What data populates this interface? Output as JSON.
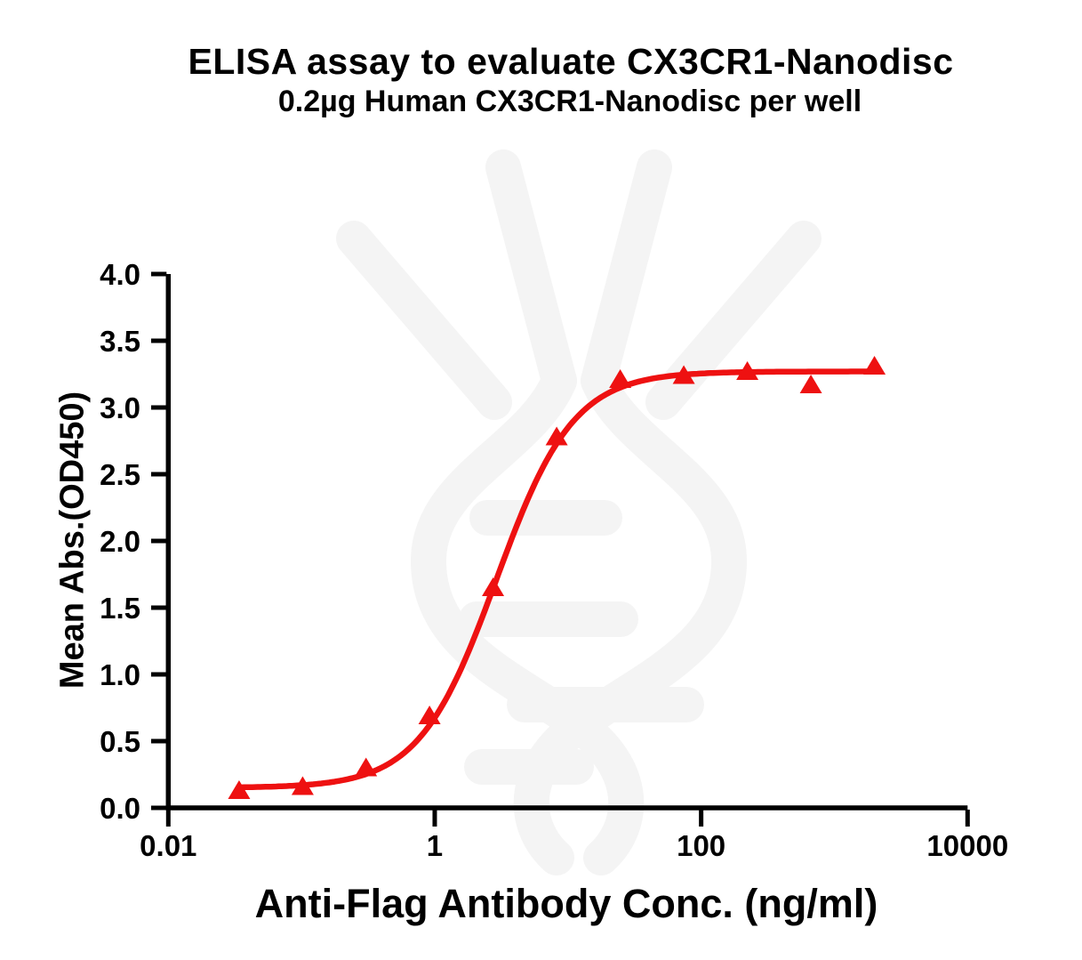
{
  "figure": {
    "title": "ELISA assay to evaluate CX3CR1-Nanodisc",
    "subtitle": "0.2µg Human CX3CR1-Nanodisc per well"
  },
  "chart_data": {
    "type": "scatter",
    "title": "ELISA assay to evaluate CX3CR1-Nanodisc",
    "subtitle": "0.2µg Human CX3CR1-Nanodisc per well",
    "xlabel": "Anti-Flag Antibody Conc. (ng/ml)",
    "ylabel": "Mean Abs.(OD450)",
    "x_scale": "log10",
    "xlim": [
      0.01,
      10000
    ],
    "ylim": [
      0.0,
      4.0
    ],
    "grid": false,
    "legend_position": "none",
    "x_ticks": [
      {
        "value": 0.01,
        "label": "0.01"
      },
      {
        "value": 1,
        "label": "1"
      },
      {
        "value": 100,
        "label": "100"
      },
      {
        "value": 10000,
        "label": "10000"
      }
    ],
    "y_ticks": [
      {
        "value": 0.0,
        "label": "0.0"
      },
      {
        "value": 0.5,
        "label": "0.5"
      },
      {
        "value": 1.0,
        "label": "1.0"
      },
      {
        "value": 1.5,
        "label": "1.5"
      },
      {
        "value": 2.0,
        "label": "2.0"
      },
      {
        "value": 2.5,
        "label": "2.5"
      },
      {
        "value": 3.0,
        "label": "3.0"
      },
      {
        "value": 3.5,
        "label": "3.5"
      },
      {
        "value": 4.0,
        "label": "4.0"
      }
    ],
    "series": [
      {
        "name": "Human CX3CR1-Nanodisc",
        "marker": "triangle-up",
        "color": "#EE1111",
        "points": [
          {
            "x": 0.034,
            "y": 0.13
          },
          {
            "x": 0.102,
            "y": 0.16
          },
          {
            "x": 0.305,
            "y": 0.3
          },
          {
            "x": 0.914,
            "y": 0.69
          },
          {
            "x": 2.74,
            "y": 1.65
          },
          {
            "x": 8.23,
            "y": 2.78
          },
          {
            "x": 24.69,
            "y": 3.21
          },
          {
            "x": 74.07,
            "y": 3.24
          },
          {
            "x": 222.2,
            "y": 3.27
          },
          {
            "x": 666.7,
            "y": 3.17
          },
          {
            "x": 2000,
            "y": 3.31
          }
        ]
      }
    ],
    "fit_curve": {
      "model": "4PL",
      "bottom": 0.15,
      "top": 3.27,
      "ec50": 2.9,
      "hill": 1.5,
      "x_start": 0.034,
      "x_end": 2000,
      "color": "#EE1111"
    },
    "colors": {
      "curve": "#EE1111",
      "axis": "#000000",
      "watermark": "#F4F4F4"
    }
  }
}
